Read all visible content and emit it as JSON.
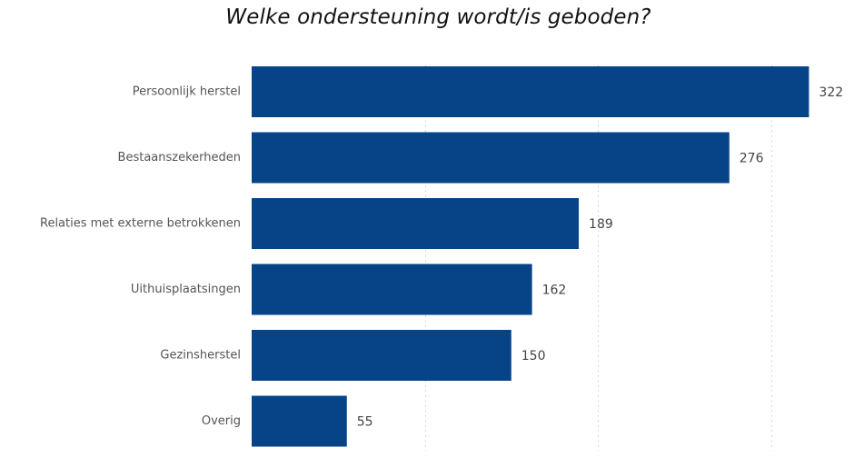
{
  "chart_data": {
    "type": "bar",
    "orientation": "horizontal",
    "title": "Welke ondersteuning wordt/is geboden?",
    "categories": [
      "Persoonlijk herstel",
      "Bestaanszekerheden",
      "Relaties met externe betrokkenen",
      "Uithuisplaatsingen",
      "Gezinsherstel",
      "Overig"
    ],
    "values": [
      322,
      276,
      189,
      162,
      150,
      55
    ],
    "data_labels": [
      "322",
      "276",
      "189",
      "162",
      "150",
      "55"
    ],
    "xlim": [
      0,
      330
    ],
    "gridlines_at": [
      0,
      100,
      200,
      300
    ],
    "grid": true,
    "legend": "none",
    "bar_color": "#064487"
  }
}
